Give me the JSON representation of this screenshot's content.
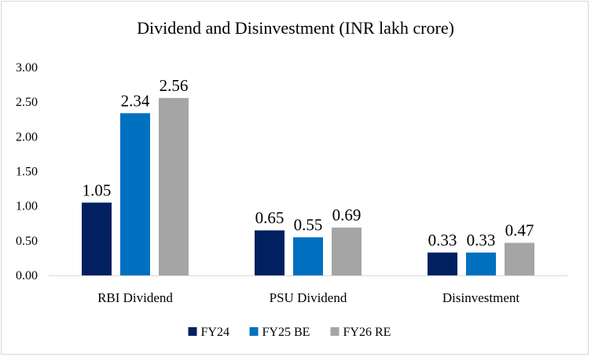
{
  "chart_data": {
    "type": "bar",
    "title": "Dividend and Disinvestment (INR lakh crore)",
    "xlabel": "",
    "ylabel": "",
    "categories": [
      "RBI Dividend",
      "PSU Dividend",
      "Disinvestment"
    ],
    "series": [
      {
        "name": "FY24",
        "color": "#002060",
        "values": [
          1.05,
          0.65,
          0.33
        ],
        "labels": [
          "1.05",
          "0.65",
          "0.33"
        ]
      },
      {
        "name": "FY25 BE",
        "color": "#0070c0",
        "values": [
          2.34,
          0.55,
          0.33
        ],
        "labels": [
          "2.34",
          "0.55",
          "0.33"
        ]
      },
      {
        "name": "FY26 RE",
        "color": "#a5a5a5",
        "values": [
          2.56,
          0.69,
          0.47
        ],
        "labels": [
          "2.56",
          "0.69",
          "0.47"
        ]
      }
    ],
    "ylim": [
      0,
      3.0
    ],
    "y_ticks": [
      "0.00",
      "0.50",
      "1.00",
      "1.50",
      "2.00",
      "2.50",
      "3.00"
    ],
    "grid": false,
    "legend_position": "bottom"
  }
}
